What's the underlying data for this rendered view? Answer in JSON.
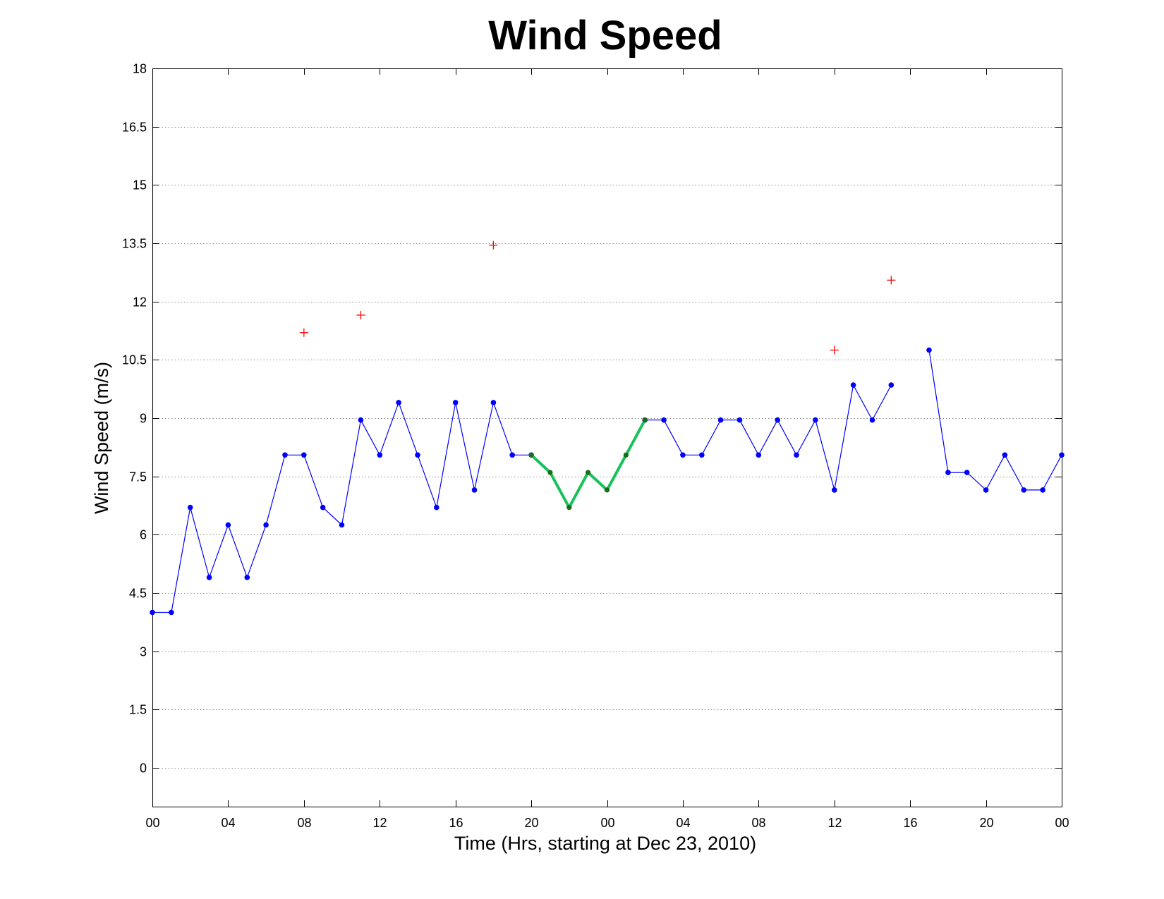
{
  "chart_data": {
    "type": "line",
    "title": "Wind Speed",
    "xlabel": "Time (Hrs, starting at Dec 23, 2010)",
    "ylabel": "Wind Speed (m/s)",
    "xlim": [
      0,
      48
    ],
    "ylim": [
      -1,
      18
    ],
    "yticks": [
      0,
      1.5,
      3,
      4.5,
      6,
      7.5,
      9,
      10.5,
      12,
      13.5,
      15,
      16.5,
      18
    ],
    "ytick_labels": [
      "0",
      "1.5",
      "3",
      "4.5",
      "6",
      "7.5",
      "9",
      "10.5",
      "12",
      "13.5",
      "15",
      "16.5",
      "18"
    ],
    "xticks": [
      0,
      4,
      8,
      12,
      16,
      20,
      24,
      28,
      32,
      36,
      40,
      44,
      48
    ],
    "xtick_labels": [
      "00",
      "04",
      "08",
      "12",
      "16",
      "20",
      "00",
      "04",
      "08",
      "12",
      "16",
      "20",
      "00"
    ],
    "grid": "horizontal-dotted",
    "colors": {
      "main": "#0000ff",
      "highlight": "#16c25a",
      "highlight_marker": "#1a6b1a",
      "gust": "#ff0000"
    },
    "series": [
      {
        "style": "line-dots",
        "segments": [
          [
            {
              "x": 0,
              "y": 4.0
            },
            {
              "x": 1,
              "y": 4.0
            },
            {
              "x": 2,
              "y": 6.7
            },
            {
              "x": 3,
              "y": 4.9
            },
            {
              "x": 4,
              "y": 6.25
            },
            {
              "x": 5,
              "y": 4.9
            },
            {
              "x": 6,
              "y": 6.25
            },
            {
              "x": 7,
              "y": 8.05
            },
            {
              "x": 8,
              "y": 8.05
            },
            {
              "x": 9,
              "y": 6.7
            },
            {
              "x": 10,
              "y": 6.25
            },
            {
              "x": 11,
              "y": 8.95
            },
            {
              "x": 12,
              "y": 8.05
            },
            {
              "x": 13,
              "y": 9.4
            },
            {
              "x": 14,
              "y": 8.05
            },
            {
              "x": 15,
              "y": 6.7
            },
            {
              "x": 16,
              "y": 9.4
            },
            {
              "x": 17,
              "y": 7.15
            },
            {
              "x": 18,
              "y": 9.4
            },
            {
              "x": 19,
              "y": 8.05
            },
            {
              "x": 20,
              "y": 8.05
            }
          ],
          [
            {
              "x": 26,
              "y": 8.95
            },
            {
              "x": 27,
              "y": 8.95
            },
            {
              "x": 28,
              "y": 8.05
            },
            {
              "x": 29,
              "y": 8.05
            },
            {
              "x": 30,
              "y": 8.95
            },
            {
              "x": 31,
              "y": 8.95
            },
            {
              "x": 32,
              "y": 8.05
            },
            {
              "x": 33,
              "y": 8.95
            },
            {
              "x": 34,
              "y": 8.05
            },
            {
              "x": 35,
              "y": 8.95
            },
            {
              "x": 36,
              "y": 7.15
            },
            {
              "x": 37,
              "y": 9.85
            },
            {
              "x": 38,
              "y": 8.95
            },
            {
              "x": 39,
              "y": 9.85
            }
          ],
          [
            {
              "x": 41,
              "y": 10.75
            },
            {
              "x": 42,
              "y": 7.6
            },
            {
              "x": 43,
              "y": 7.6
            },
            {
              "x": 44,
              "y": 7.15
            },
            {
              "x": 45,
              "y": 8.05
            },
            {
              "x": 46,
              "y": 7.15
            },
            {
              "x": 47,
              "y": 7.15
            },
            {
              "x": 48,
              "y": 8.05
            }
          ]
        ]
      },
      {
        "style": "thick-line-dots",
        "segments": [
          [
            {
              "x": 20,
              "y": 8.05
            },
            {
              "x": 21,
              "y": 7.6
            },
            {
              "x": 22,
              "y": 6.7
            },
            {
              "x": 23,
              "y": 7.6
            },
            {
              "x": 24,
              "y": 7.15
            },
            {
              "x": 25,
              "y": 8.05
            },
            {
              "x": 26,
              "y": 8.95
            }
          ]
        ]
      },
      {
        "style": "plus-markers",
        "points": [
          {
            "x": 8,
            "y": 11.2
          },
          {
            "x": 11,
            "y": 11.65
          },
          {
            "x": 18,
            "y": 13.45
          },
          {
            "x": 36,
            "y": 10.75
          },
          {
            "x": 39,
            "y": 12.55
          }
        ]
      }
    ]
  }
}
